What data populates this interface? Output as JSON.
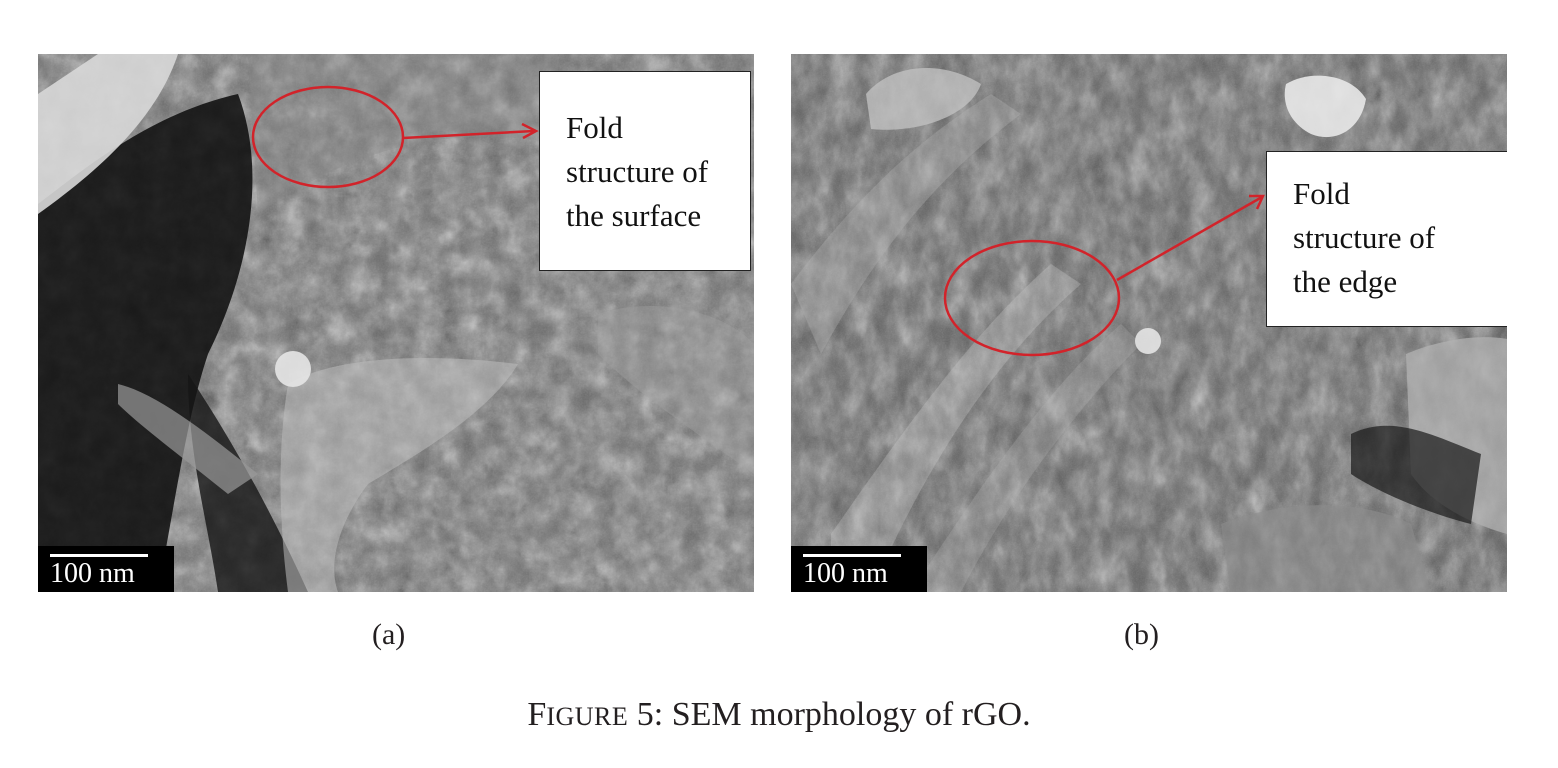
{
  "figure": {
    "caption_prefix_big": "F",
    "caption_prefix_small": "IGURE",
    "caption_text": " 5: SEM morphology of rGO.",
    "panels": [
      {
        "sublabel": "(a)",
        "scale_label": "100 nm",
        "callout_lines": [
          "Fold",
          "structure of",
          "the surface"
        ]
      },
      {
        "sublabel": "(b)",
        "scale_label": "100 nm",
        "callout_lines": [
          "Fold",
          "structure of",
          "the edge"
        ]
      }
    ],
    "colors": {
      "annotation": "#d2232a"
    }
  }
}
